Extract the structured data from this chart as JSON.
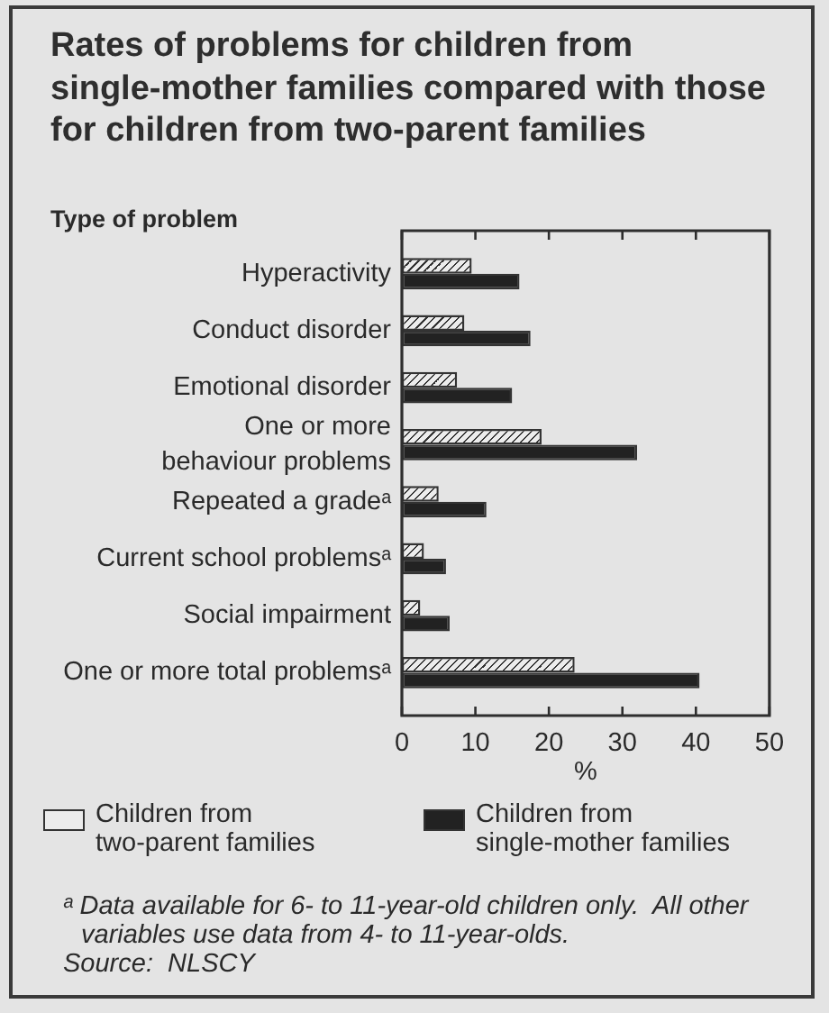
{
  "chart_data": {
    "type": "bar",
    "orientation": "horizontal",
    "title": "Rates of problems for children from single-mother families compared with those for children from two-parent families",
    "ylabel": "Type of problem",
    "xlabel": "%",
    "categories": [
      "Hyperactivity",
      "Conduct disorder",
      "Emotional disorder",
      "One or more behaviour problems",
      "Repeated a gradeᵃ",
      "Current school problemsᵃ",
      "Social impairment",
      "One or more total problemsᵃ"
    ],
    "series": [
      {
        "name": "Children from two-parent families",
        "color": "#ececec",
        "values": [
          9.5,
          8.5,
          7.5,
          19,
          5,
          3,
          2.5,
          23.5
        ]
      },
      {
        "name": "Children from single-mother families",
        "color": "#222222",
        "values": [
          16,
          17.5,
          15,
          32,
          11.5,
          6,
          6.5,
          40.5
        ]
      }
    ],
    "xlim": [
      0,
      50
    ],
    "xticks": [
      0,
      10,
      20,
      30,
      40,
      50
    ],
    "legend": "bottom",
    "annotations": [
      "ᵃ Data available for 6- to 11-year-old children only.  All other variables use data from 4- to 11-year-olds.",
      "Source:  NLSCY"
    ]
  }
}
